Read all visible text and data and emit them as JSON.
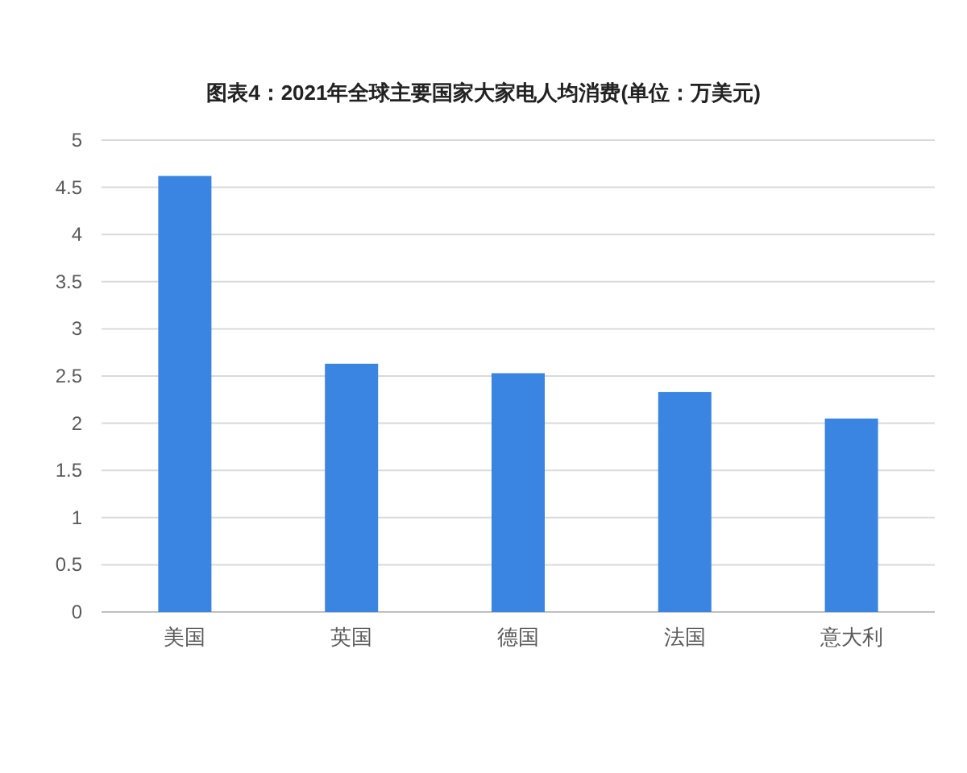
{
  "chart_data": {
    "type": "bar",
    "title": "图表4：2021年全球主要国家大家电人均消费(单位：万美元)",
    "categories": [
      "美国",
      "英国",
      "德国",
      "法国",
      "意大利"
    ],
    "values": [
      4.62,
      2.63,
      2.53,
      2.33,
      2.05
    ],
    "color": "#3a84e2",
    "ylim": [
      0,
      5
    ],
    "yticks": [
      0,
      0.5,
      1,
      1.5,
      2,
      2.5,
      3,
      3.5,
      4,
      4.5,
      5
    ],
    "grid": "y"
  }
}
